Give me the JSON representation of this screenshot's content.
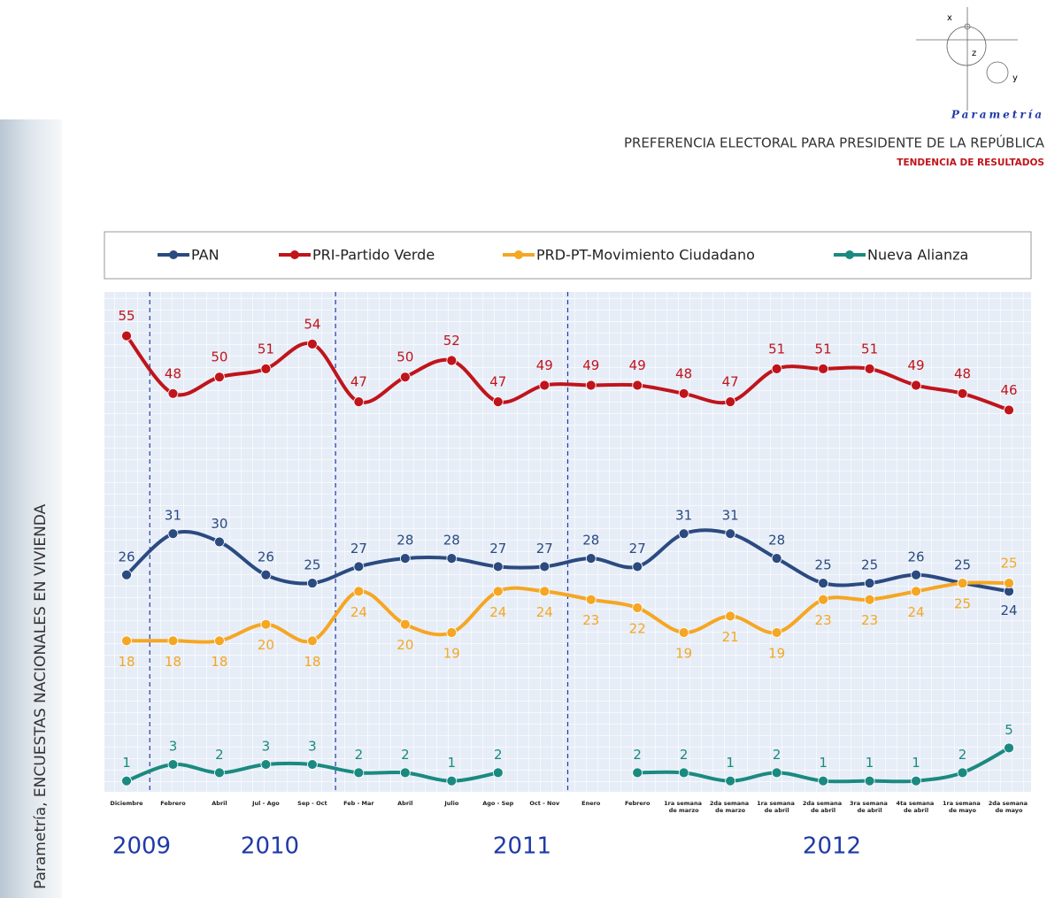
{
  "brand": "Parametría",
  "side_text": "Parametría, ENCUESTAS NACIONALES EN VIVIENDA",
  "chart_data": {
    "type": "line",
    "title": "PREFERENCIA ELECTORAL PARA PRESIDENTE DE LA REPÚBLICA",
    "subtitle": "TENDENCIA DE RESULTADOS",
    "categories": [
      "Diciembre",
      "Febrero",
      "Abril",
      "Jul - Ago",
      "Sep - Oct",
      "Feb - Mar",
      "Abril",
      "Julio",
      "Ago - Sep",
      "Oct - Nov",
      "Enero",
      "Febrero",
      "1ra semana de marzo",
      "2da semana de marzo",
      "1ra semana de abril",
      "2da semana de abril",
      "3ra semana de abril",
      "4ta semana de abril",
      "1ra semana de mayo",
      "2da semana de mayo"
    ],
    "years": [
      "2009",
      "2010",
      "2011",
      "2012"
    ],
    "ylim": [
      0,
      60
    ],
    "series": [
      {
        "name": "PAN",
        "color": "#2b4a80",
        "values": [
          26,
          31,
          30,
          26,
          25,
          27,
          28,
          28,
          27,
          27,
          28,
          27,
          31,
          31,
          28,
          25,
          25,
          26,
          25,
          24
        ]
      },
      {
        "name": "PRI-Partido Verde",
        "color": "#c0141b",
        "values": [
          55,
          48,
          50,
          51,
          54,
          47,
          50,
          52,
          47,
          49,
          49,
          49,
          48,
          47,
          51,
          51,
          51,
          49,
          48,
          46
        ]
      },
      {
        "name": "PRD-PT-Movimiento Ciudadano",
        "color": "#f5a623",
        "values": [
          18,
          18,
          18,
          20,
          18,
          24,
          20,
          19,
          24,
          24,
          23,
          22,
          19,
          21,
          19,
          23,
          23,
          24,
          25,
          25
        ]
      },
      {
        "name": "Nueva Alianza",
        "color": "#1a8a80",
        "values": [
          1,
          3,
          2,
          3,
          3,
          2,
          2,
          1,
          2,
          null,
          null,
          2,
          2,
          1,
          2,
          1,
          1,
          1,
          2,
          5
        ]
      }
    ]
  }
}
